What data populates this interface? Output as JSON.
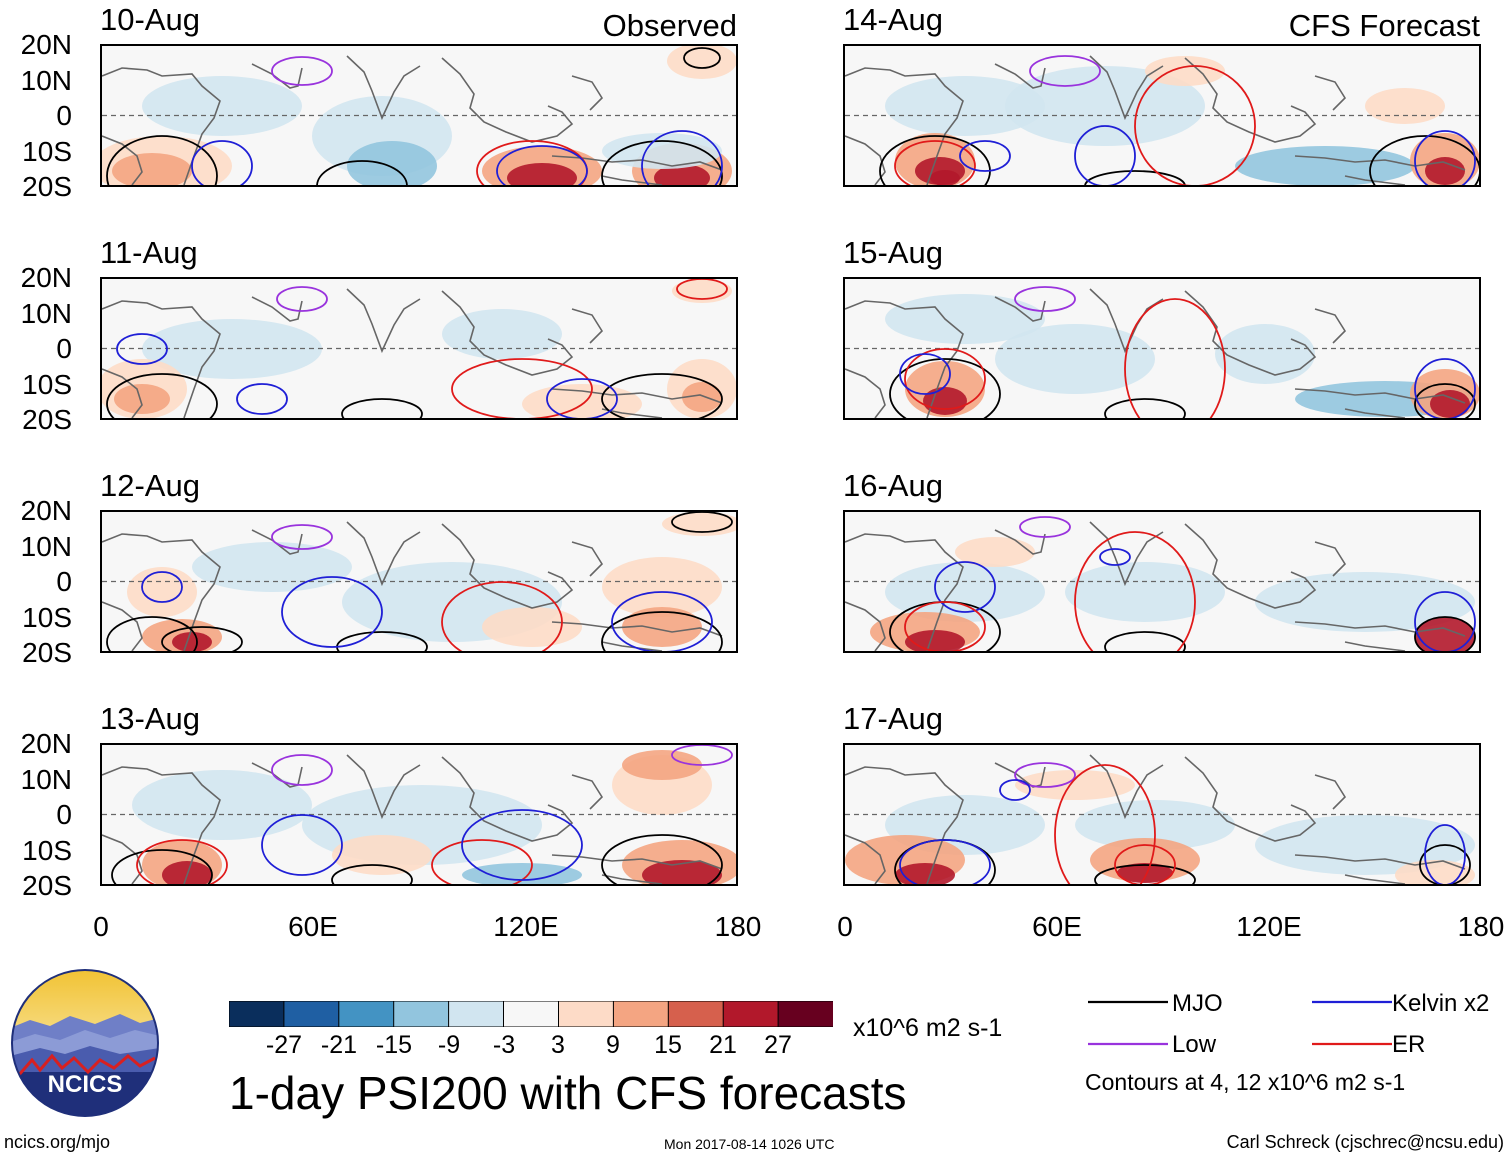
{
  "header": {
    "observed_label": "Observed",
    "forecast_label": "CFS Forecast"
  },
  "panels": [
    {
      "date": "10-Aug",
      "column": "observed"
    },
    {
      "date": "11-Aug",
      "column": "observed"
    },
    {
      "date": "12-Aug",
      "column": "observed"
    },
    {
      "date": "13-Aug",
      "column": "observed"
    },
    {
      "date": "14-Aug",
      "column": "forecast"
    },
    {
      "date": "15-Aug",
      "column": "forecast"
    },
    {
      "date": "16-Aug",
      "column": "forecast"
    },
    {
      "date": "17-Aug",
      "column": "forecast"
    }
  ],
  "axes": {
    "lat_labels": [
      "20N",
      "10N",
      "0",
      "10S",
      "20S"
    ],
    "lon_labels": [
      "0",
      "60E",
      "120E",
      "180"
    ]
  },
  "colorbar": {
    "labels": [
      "-27",
      "-21",
      "-15",
      "-9",
      "-3",
      "3",
      "9",
      "15",
      "21",
      "27"
    ],
    "colors": [
      "#0a2e5c",
      "#1f5fa3",
      "#4393c3",
      "#92c5de",
      "#d1e5f0",
      "#f7f7f7",
      "#fddbc7",
      "#f4a582",
      "#d6604d",
      "#b2182b",
      "#67001f"
    ],
    "units": "x10^6 m2 s-1"
  },
  "legend": {
    "mjo": {
      "label": "MJO",
      "color": "#000000"
    },
    "kelvin": {
      "label": "Kelvin x2",
      "color": "#1f1fd6"
    },
    "low": {
      "label": "Low",
      "color": "#9933dd"
    },
    "er": {
      "label": "ER",
      "color": "#e01a1a"
    },
    "contours_note": "Contours at 4, 12 x10^6 m2 s-1"
  },
  "title": "1-day PSI200 with CFS forecasts",
  "footer": {
    "website": "ncics.org/mjo",
    "timestamp": "Mon 2017-08-14 1026 UTC",
    "author": "Carl Schreck (cjschrec@ncsu.edu)"
  },
  "logo": {
    "text": "NCICS"
  }
}
